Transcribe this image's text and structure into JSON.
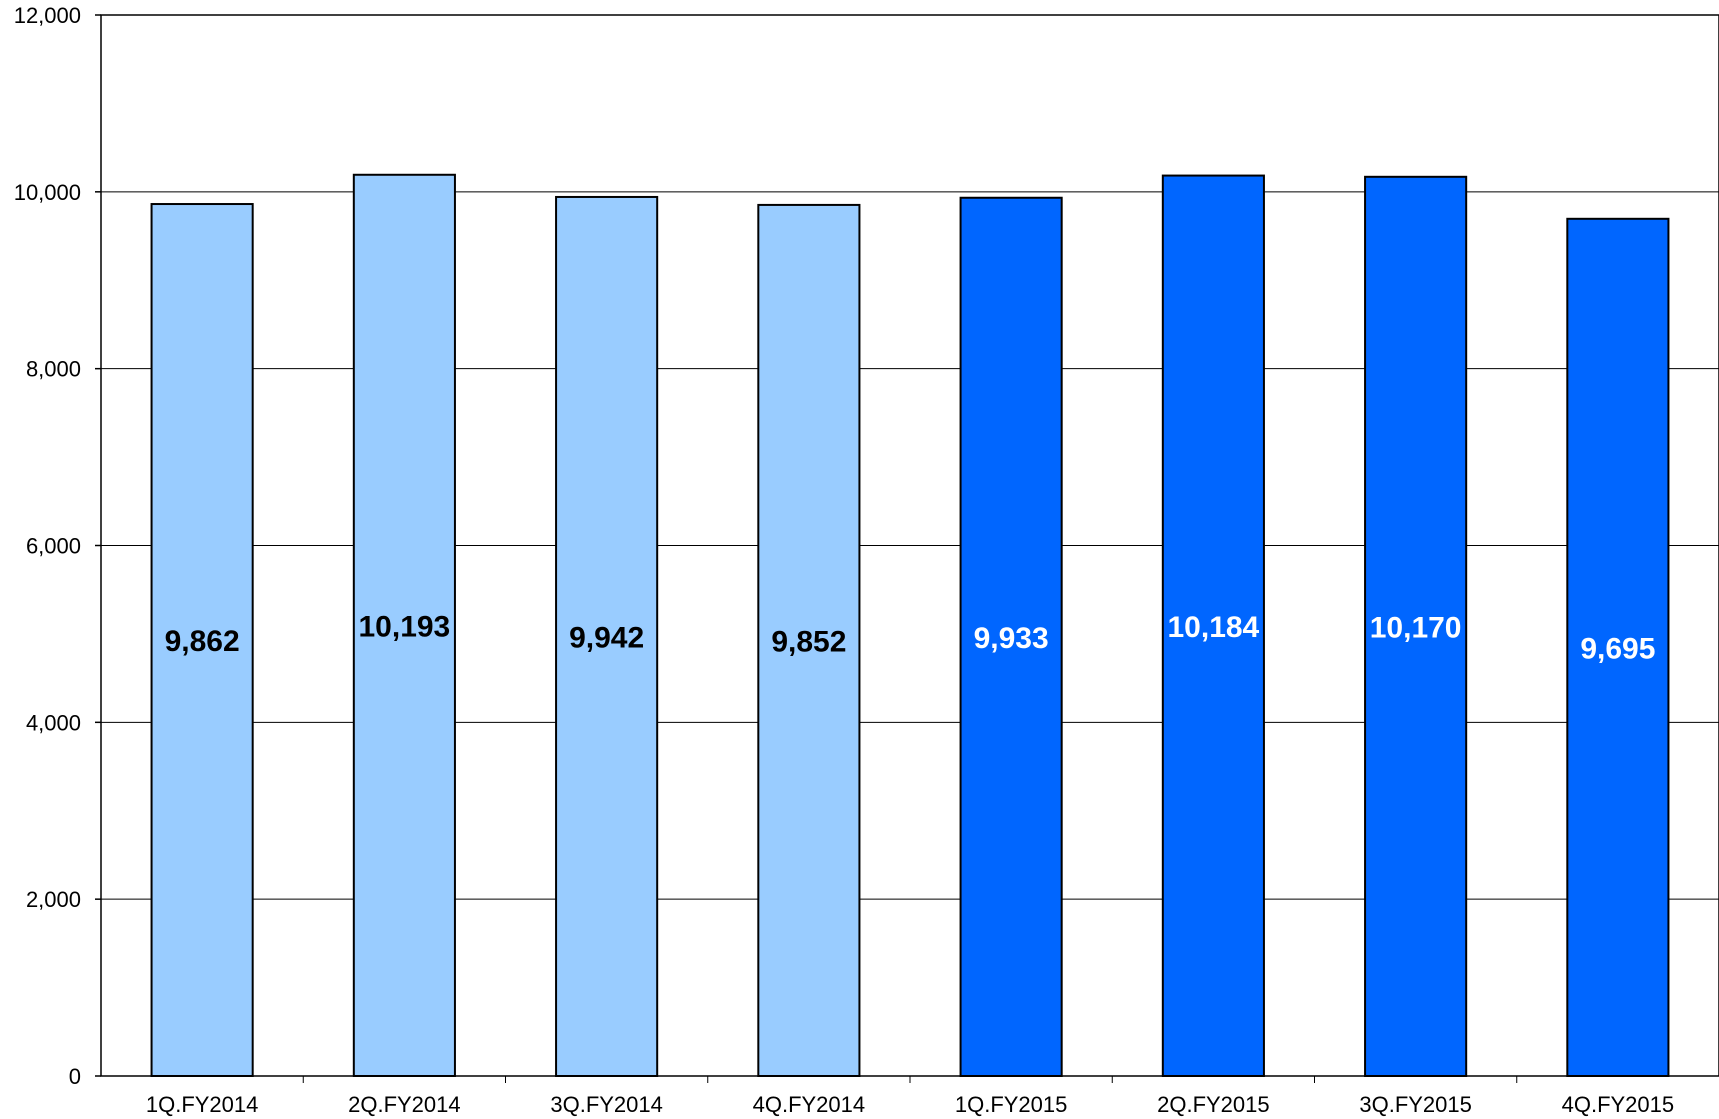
{
  "chart_data": {
    "type": "bar",
    "categories": [
      "1Q.FY2014",
      "2Q.FY2014",
      "3Q.FY2014",
      "4Q.FY2014",
      "1Q.FY2015",
      "2Q.FY2015",
      "3Q.FY2015",
      "4Q.FY2015"
    ],
    "values": [
      9862,
      10193,
      9942,
      9852,
      9933,
      10184,
      10170,
      9695
    ],
    "value_labels": [
      "9,862",
      "10,193",
      "9,942",
      "9,852",
      "9,933",
      "10,184",
      "10,170",
      "9,695"
    ],
    "bar_colors": [
      "#99ccff",
      "#99ccff",
      "#99ccff",
      "#99ccff",
      "#0066ff",
      "#0066ff",
      "#0066ff",
      "#0066ff"
    ],
    "label_colors": [
      "#000000",
      "#000000",
      "#000000",
      "#000000",
      "#ffffff",
      "#ffffff",
      "#ffffff",
      "#ffffff"
    ],
    "yticks": [
      0,
      2000,
      4000,
      6000,
      8000,
      10000,
      12000
    ],
    "ytick_labels": [
      "0",
      "2,000",
      "4,000",
      "6,000",
      "8,000",
      "10,000",
      "12,000"
    ],
    "ylim": [
      0,
      12000
    ],
    "grid": true,
    "title": "",
    "xlabel": "",
    "ylabel": ""
  }
}
